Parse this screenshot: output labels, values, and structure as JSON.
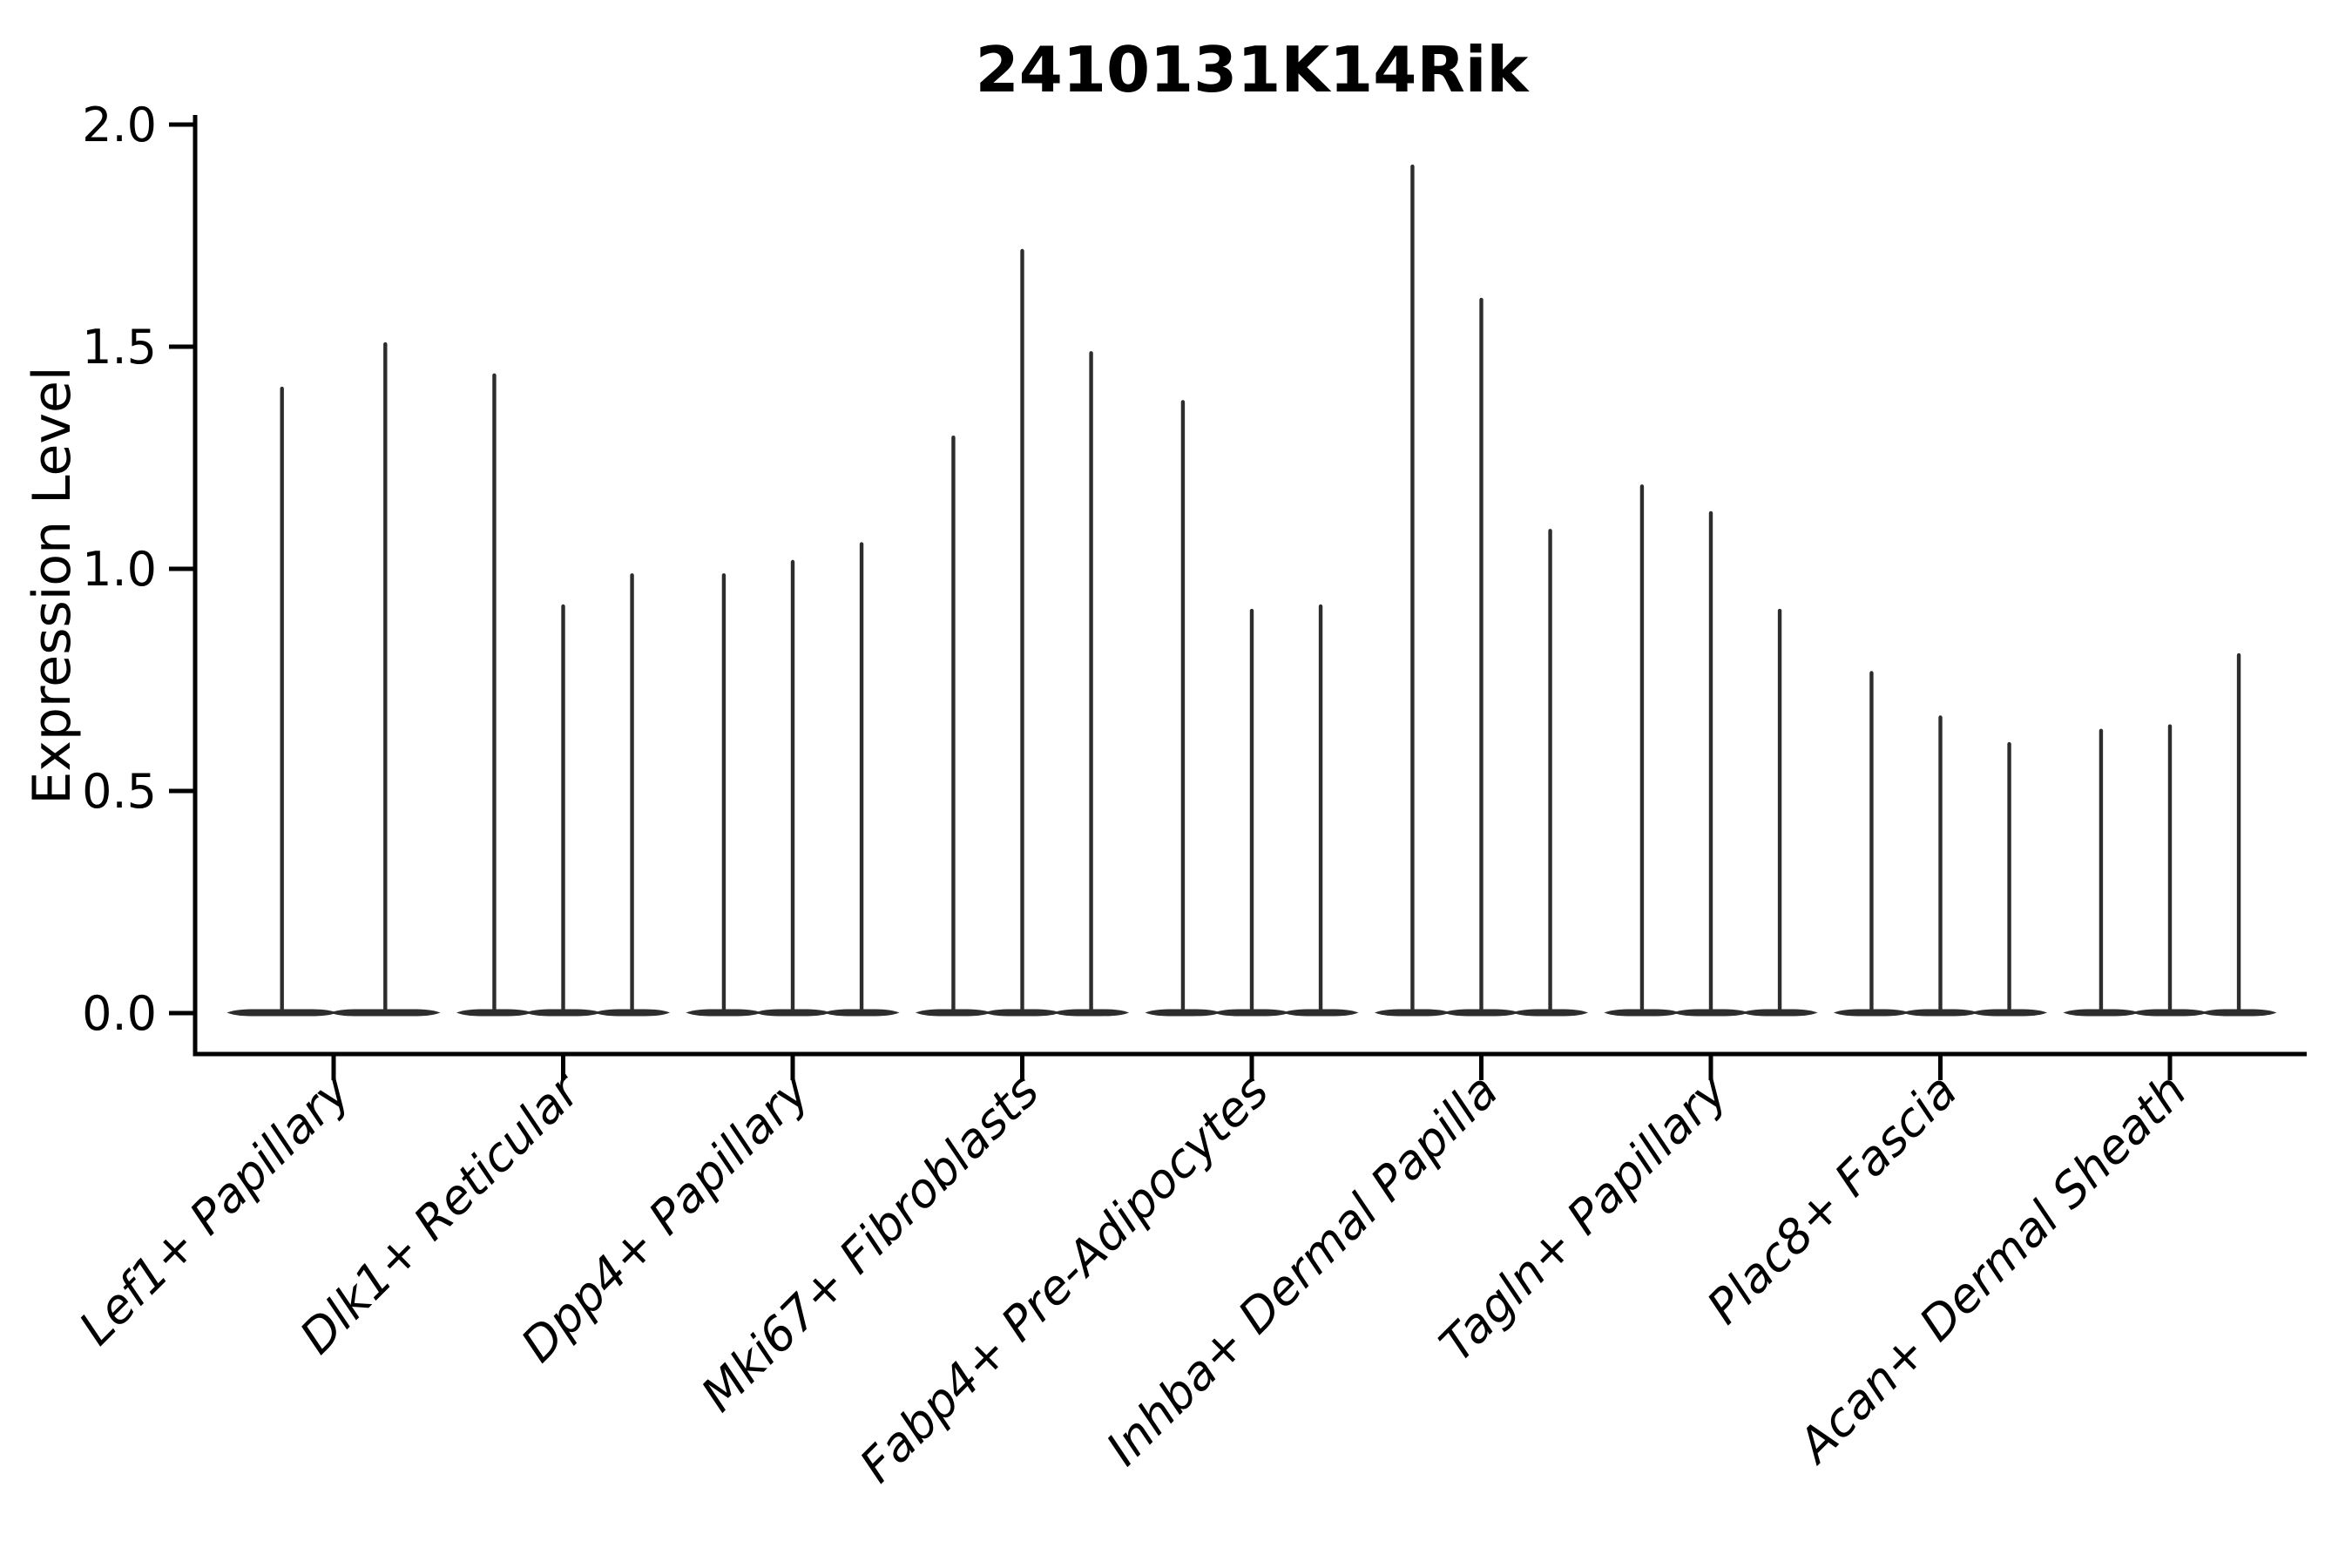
{
  "title": "2410131K14Rik",
  "chart_data": {
    "type": "violin",
    "title": "2410131K14Rik",
    "xlabel": "",
    "ylabel": "Expression Level",
    "ylim": [
      0.0,
      2.0
    ],
    "yticks": [
      0.0,
      0.5,
      1.0,
      1.5,
      2.0
    ],
    "ytick_labels": [
      "0.0",
      "0.5",
      "1.0",
      "1.5",
      "2.0"
    ],
    "grid": false,
    "legend": false,
    "categories": [
      "Lef1+ Papillary",
      "Dlk1+ Reticular",
      "Dpp4+ Papillary",
      "Mki67+ Fibroblasts",
      "Fabp4+ Pre-Adipocytes",
      "Inhba+ Dermal Papilla",
      "Tagln+ Papillary",
      "Plac8+ Fascia",
      "Acan+ Dermal Sheath"
    ],
    "groups": [
      {
        "label": "Lef1+ Papillary",
        "violin_max_expression": [
          1.41,
          1.51
        ]
      },
      {
        "label": "Dlk1+ Reticular",
        "violin_max_expression": [
          1.44,
          0.92,
          0.99
        ]
      },
      {
        "label": "Dpp4+ Papillary",
        "violin_max_expression": [
          0.99,
          1.02,
          1.06
        ]
      },
      {
        "label": "Mki67+ Fibroblasts",
        "violin_max_expression": [
          1.3,
          1.72,
          1.49
        ]
      },
      {
        "label": "Fabp4+ Pre-Adipocytes",
        "violin_max_expression": [
          1.38,
          0.91,
          0.92
        ]
      },
      {
        "label": "Inhba+ Dermal Papilla",
        "violin_max_expression": [
          1.91,
          1.61,
          1.09
        ]
      },
      {
        "label": "Tagln+ Papillary",
        "violin_max_expression": [
          1.19,
          1.13,
          0.91
        ]
      },
      {
        "label": "Plac8+ Fascia",
        "violin_max_expression": [
          0.77,
          0.67,
          0.61
        ]
      },
      {
        "label": "Acan+ Dermal Sheath",
        "violin_max_expression": [
          0.64,
          0.65,
          0.81
        ]
      }
    ],
    "violin_baseline_value": 0.0,
    "style": {
      "violin_color": "#2d2d2d",
      "axis_color": "#000000",
      "text_color": "#000000",
      "background_color": "#ffffff"
    }
  }
}
